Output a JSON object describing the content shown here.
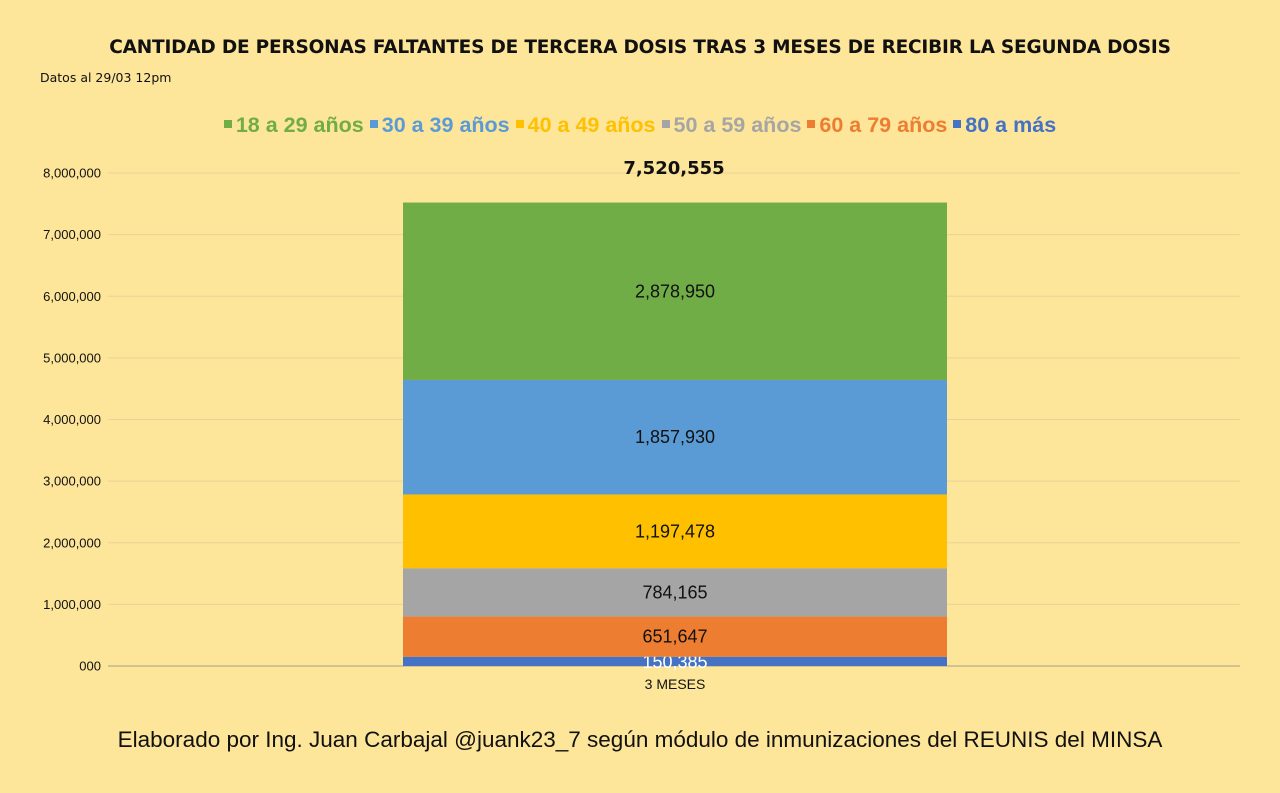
{
  "chart_data": {
    "type": "bar",
    "stacked": true,
    "title": "CANTIDAD DE PERSONAS FALTANTES DE TERCERA DOSIS TRAS 3 MESES DE RECIBIR LA SEGUNDA DOSIS",
    "subtitle": "Datos al 29/03 12pm",
    "categories": [
      "3 MESES"
    ],
    "total_label": "7,520,555",
    "ylim": [
      0,
      8000000
    ],
    "ytick_values": [
      0,
      1000000,
      2000000,
      3000000,
      4000000,
      5000000,
      6000000,
      7000000,
      8000000
    ],
    "ytick_labels": [
      "000",
      "1,000,000",
      "2,000,000",
      "3,000,000",
      "4,000,000",
      "5,000,000",
      "6,000,000",
      "7,000,000",
      "8,000,000"
    ],
    "legend_position": "top",
    "series": [
      {
        "name": "80 a más",
        "values": [
          150385
        ],
        "label": "150,385",
        "color": "#4472c4",
        "label_color": "#ffffff"
      },
      {
        "name": "60 a 79 años",
        "values": [
          651647
        ],
        "label": "651,647",
        "color": "#ed7d31",
        "label_color": "#111111"
      },
      {
        "name": "50 a 59 años",
        "values": [
          784165
        ],
        "label": "784,165",
        "color": "#a5a5a5",
        "label_color": "#111111"
      },
      {
        "name": "40 a 49 años",
        "values": [
          1197478
        ],
        "label": "1,197,478",
        "color": "#ffc000",
        "label_color": "#111111"
      },
      {
        "name": "30 a 39 años",
        "values": [
          1857930
        ],
        "label": "1,857,930",
        "color": "#5b9bd5",
        "label_color": "#111111"
      },
      {
        "name": "18 a 29 años",
        "values": [
          2878950
        ],
        "label": "2,878,950",
        "color": "#70ad47",
        "label_color": "#111111"
      }
    ],
    "legend_order": [
      "18 a 29 años",
      "30 a 39 años",
      "40 a 49 años",
      "50 a 59 años",
      "60 a 79 años",
      "80 a más"
    ]
  },
  "footer": "Elaborado por Ing. Juan Carbajal @juank23_7 según módulo de inmunizaciones del REUNIS del MINSA"
}
